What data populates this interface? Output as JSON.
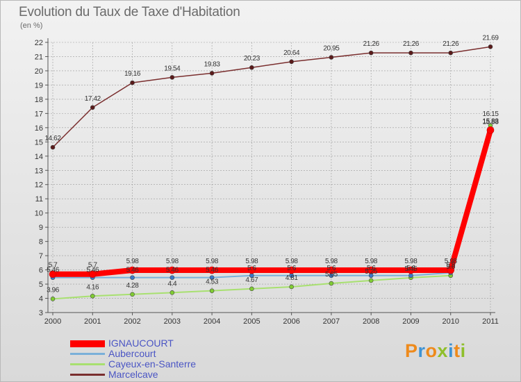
{
  "title": "Evolution du Taux de Taxe d'Habitation",
  "unit_label": "(en %)",
  "logo": {
    "text": "Proxiti"
  },
  "colors": {
    "grid": "#9a9a9a",
    "axis": "#555555"
  },
  "chart_data": {
    "type": "line",
    "title": "Evolution du Taux de Taxe d'Habitation",
    "ylabel": "(en %)",
    "xlabel": "",
    "ylim": [
      3,
      22
    ],
    "yticks": [
      3,
      4,
      5,
      6,
      7,
      8,
      9,
      10,
      11,
      12,
      13,
      14,
      15,
      16,
      17,
      18,
      19,
      20,
      21,
      22
    ],
    "categories": [
      "2000",
      "2001",
      "2002",
      "2003",
      "2004",
      "2005",
      "2006",
      "2007",
      "2008",
      "2009",
      "2010",
      "2011"
    ],
    "grid": true,
    "legend_position": "bottom-left",
    "series": [
      {
        "name": "IGNAUCOURT",
        "color": "#ff0000",
        "marker_color": "#ff0000",
        "width": 8,
        "values": [
          5.7,
          5.7,
          5.98,
          5.98,
          5.98,
          5.98,
          5.98,
          5.98,
          5.98,
          5.98,
          5.98,
          15.83
        ],
        "labels": [
          "5.7",
          "5.7",
          "5.98",
          "5.98",
          "5.98",
          "5.98",
          "5.98",
          "5.98",
          "5.98",
          "5.98",
          "5.98",
          "15.83"
        ]
      },
      {
        "name": "Aubercourt",
        "color": "#7ab0d9",
        "marker_color": "#3a78c8",
        "width": 2,
        "values": [
          5.46,
          5.46,
          5.46,
          5.46,
          5.46,
          5.6,
          5.6,
          5.6,
          5.6,
          5.6,
          5.8,
          15.88
        ],
        "labels": [
          "5.46",
          "5.46",
          "5.46",
          "5.46",
          "5.46",
          "5.6",
          "5.6",
          "5.6",
          "5.6",
          "5.6",
          "5.8",
          "15.88"
        ]
      },
      {
        "name": "Cayeux-en-Santerre",
        "color": "#a8e070",
        "marker_color": "#80cc33",
        "width": 2,
        "values": [
          3.96,
          4.16,
          4.28,
          4.4,
          4.53,
          4.67,
          4.81,
          5.05,
          5.25,
          5.45,
          5.6,
          16.15
        ],
        "labels": [
          "3.96",
          "4.16",
          "4.28",
          "4.4",
          "4.53",
          "4.67",
          "4.81",
          "5.05",
          "5.25",
          "5.45",
          "5.6",
          "16.15"
        ]
      },
      {
        "name": "Marcelcave",
        "color": "#7a2e2e",
        "marker_color": "#5a1a1a",
        "width": 1.5,
        "values": [
          14.62,
          17.42,
          19.16,
          19.54,
          19.83,
          20.23,
          20.64,
          20.95,
          21.26,
          21.26,
          21.26,
          21.69
        ],
        "labels": [
          "14.62",
          "17.42",
          "19.16",
          "19.54",
          "19.83",
          "20.23",
          "20.64",
          "20.95",
          "21.26",
          "21.26",
          "21.26",
          "21.69"
        ]
      }
    ]
  }
}
